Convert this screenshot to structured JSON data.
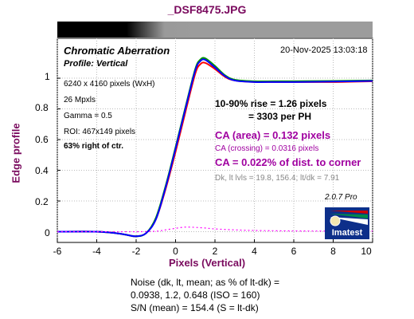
{
  "header": {
    "filename": "_DSF8475.JPG"
  },
  "chart_data": {
    "type": "line",
    "title": "Chromatic Aberration",
    "subtitle": "Profile: Vertical",
    "xlabel": "Pixels (Vertical)",
    "ylabel": "Edge profile",
    "xlim": [
      -6,
      10
    ],
    "ylim": [
      -0.07,
      1.26
    ],
    "xticks": [
      "-6",
      "-4",
      "-2",
      "0",
      "2",
      "4",
      "6",
      "8",
      "10"
    ],
    "yticks": [
      "0",
      "0.2",
      "0.4",
      "0.6",
      "0.8",
      "1"
    ],
    "grid": true,
    "series": [
      {
        "name": "",
        "color": "#ff0000",
        "x": [
          -6,
          -4,
          -3,
          -2.5,
          -2,
          -1.5,
          -1,
          -0.5,
          0,
          0.5,
          1,
          1.25,
          1.5,
          2,
          2.5,
          3,
          4,
          5,
          6,
          8,
          10
        ],
        "y": [
          0.0,
          0.0,
          -0.01,
          -0.02,
          -0.03,
          -0.01,
          0.08,
          0.28,
          0.52,
          0.78,
          1.03,
          1.09,
          1.1,
          1.06,
          1.01,
          0.985,
          0.975,
          0.975,
          0.975,
          0.975,
          0.98
        ]
      },
      {
        "name": "",
        "color": "#009900",
        "x": [
          -6,
          -4,
          -3,
          -2.5,
          -2,
          -1.5,
          -1,
          -0.5,
          0,
          0.5,
          1,
          1.25,
          1.5,
          2,
          2.5,
          3,
          4,
          5,
          6,
          8,
          10
        ],
        "y": [
          0.0,
          0.0,
          -0.01,
          -0.02,
          -0.03,
          -0.01,
          0.09,
          0.3,
          0.55,
          0.81,
          1.06,
          1.12,
          1.13,
          1.08,
          1.02,
          0.99,
          0.98,
          0.98,
          0.98,
          0.982,
          0.985
        ]
      },
      {
        "name": "",
        "color": "#0000ff",
        "x": [
          -6,
          -4,
          -3,
          -2.5,
          -2,
          -1.5,
          -1,
          -0.5,
          0,
          0.5,
          1,
          1.25,
          1.5,
          2,
          2.5,
          3,
          4,
          5,
          6,
          8,
          10
        ],
        "y": [
          0.0,
          0.0,
          -0.01,
          -0.02,
          -0.03,
          -0.01,
          0.08,
          0.29,
          0.54,
          0.8,
          1.05,
          1.11,
          1.12,
          1.07,
          1.015,
          0.985,
          0.975,
          0.975,
          0.975,
          0.978,
          0.982
        ]
      },
      {
        "name": "",
        "color": "#ff00ff",
        "dash": true,
        "x": [
          -6,
          -4,
          -2,
          -1,
          -0.5,
          0,
          0.5,
          1,
          1.5,
          2,
          3,
          4,
          6,
          8,
          10
        ],
        "y": [
          0.0,
          0.0,
          0.0,
          0.003,
          0.012,
          0.022,
          0.03,
          0.028,
          0.024,
          0.018,
          0.012,
          0.008,
          0.005,
          0.004,
          0.004
        ]
      }
    ]
  },
  "info": {
    "date": "20-Nov-2025 13:03:18",
    "dimensions": "6240 x 4160 pixels (WxH)",
    "mpxls": "26 Mpxls",
    "gamma": "Gamma = 0.5",
    "roi": "ROI: 467x149 pixels",
    "location": "63% right of ctr."
  },
  "results": {
    "rise": "10-90% rise = 1.26 pixels",
    "per_ph": "= 3303 per PH",
    "ca_area": "CA (area) = 0.132 pixels",
    "ca_crossing": "CA (crossing) = 0.0316 pixels",
    "ca_distance": "CA = 0.022% of dist. to corner",
    "dk_levels": "Dk, lt lvls = 19.8, 156.4;  lt/dk = 7.91"
  },
  "branding": {
    "version": "2.0.7  Pro",
    "logo_text": "Imatest",
    "logo_colors": [
      "#cc0000",
      "#00884a",
      "#0033aa"
    ]
  },
  "noise": {
    "line1": "Noise (dk, lt, mean; as % of lt-dk) =",
    "line2": "0.0938,  1.2,  0.648   (ISO =  160)",
    "line3": "S/N (mean) = 154.4  (S = lt-dk)"
  }
}
